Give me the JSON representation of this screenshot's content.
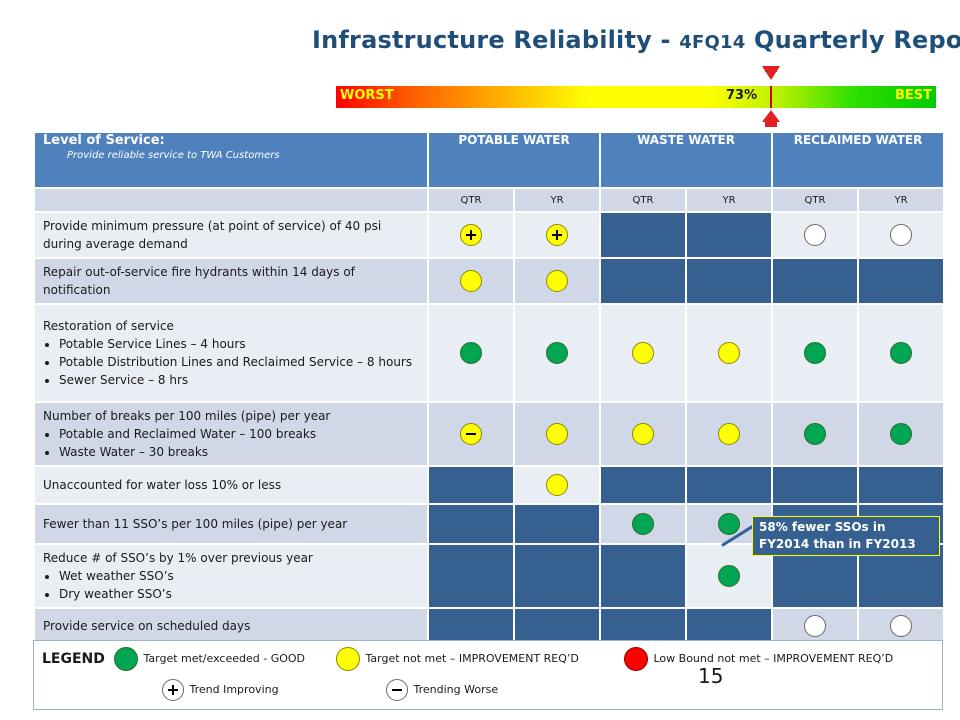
{
  "title": {
    "prefix": "Infrastructure Reliability - ",
    "code": "4FQ14",
    "suffix": " Quarterly Report"
  },
  "scale": {
    "worst": "WORST",
    "best": "BEST",
    "value_label": "73%",
    "value": 0.73
  },
  "table": {
    "level_of_service": "Level of Service:",
    "level_of_service_sub": "Provide reliable service to TWA Customers",
    "columns": [
      "POTABLE WATER",
      "WASTE WATER",
      "RECLAIMED WATER"
    ],
    "subcolumns": [
      "QTR",
      "YR",
      "QTR",
      "YR",
      "QTR",
      "YR"
    ],
    "rows": [
      {
        "text": "Provide minimum pressure (at point of service) of 40 psi during average demand",
        "bullets": [],
        "cells": [
          "yellow-plus",
          "yellow-plus",
          "dark",
          "dark",
          "white",
          "white"
        ]
      },
      {
        "text": "Repair out-of-service fire hydrants within 14 days of notification",
        "bullets": [],
        "cells": [
          "yellow",
          "yellow",
          "dark",
          "dark",
          "dark",
          "dark"
        ]
      },
      {
        "text": "Restoration of service",
        "bullets": [
          "Potable Service Lines – 4 hours",
          "Potable Distribution Lines and Reclaimed Service – 8 hours",
          "Sewer Service – 8 hrs"
        ],
        "cells": [
          "green",
          "green",
          "yellow",
          "yellow",
          "green",
          "green"
        ]
      },
      {
        "text": "Number of breaks per 100 miles (pipe) per year",
        "bullets": [
          "Potable and Reclaimed Water – 100 breaks",
          "Waste Water – 30 breaks"
        ],
        "cells": [
          "yellow-minus",
          "yellow",
          "yellow",
          "yellow",
          "green",
          "green"
        ]
      },
      {
        "text": "Unaccounted for water loss 10% or less",
        "bullets": [],
        "cells": [
          "dark",
          "yellow",
          "dark",
          "dark",
          "dark",
          "dark"
        ]
      },
      {
        "text": "Fewer than 11 SSO’s per 100 miles (pipe) per year",
        "bullets": [],
        "cells": [
          "dark",
          "dark",
          "green",
          "green",
          "dark",
          "dark"
        ]
      },
      {
        "text": "Reduce # of SSO’s by 1% over previous year",
        "bullets": [
          "Wet weather SSO’s",
          "Dry weather SSO’s"
        ],
        "cells": [
          "dark",
          "dark",
          "dark",
          "green",
          "dark",
          "dark"
        ]
      },
      {
        "text": "Provide service on scheduled days",
        "bullets": [],
        "cells": [
          "dark",
          "dark",
          "dark",
          "dark",
          "white",
          "white"
        ]
      }
    ]
  },
  "callout": "58% fewer SSOs in FY2014 than in FY2013",
  "legend": {
    "title": "LEGEND",
    "good": "Target met/exceeded - GOOD",
    "not_met": "Target not met – IMPROVEMENT REQ’D",
    "low": "Low Bound not met – IMPROVEMENT REQ’D",
    "improving": "Trend Improving",
    "worse": "Trending Worse"
  },
  "page_number": "15",
  "colors": {
    "header": "#4f81bd",
    "dark_cell": "#35608f",
    "good": "#00a651",
    "warn": "#ffff00",
    "bad": "#ff0000"
  }
}
